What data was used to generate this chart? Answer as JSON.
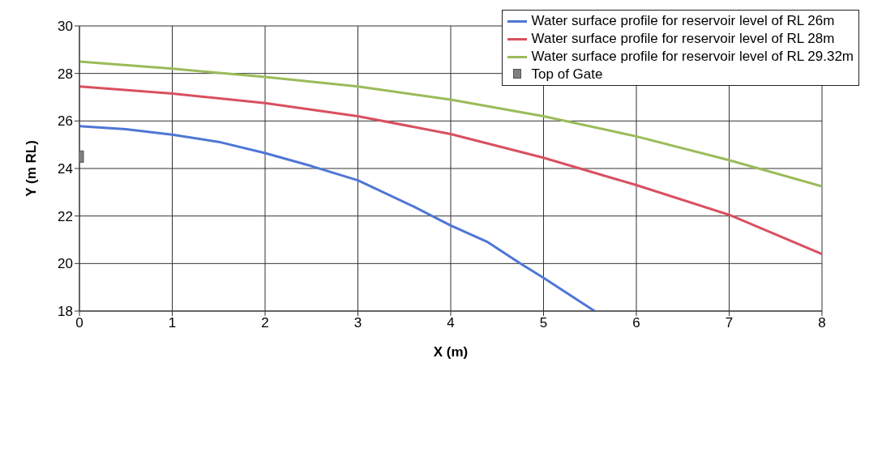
{
  "chart_data": {
    "type": "line",
    "xlabel": "X (m)",
    "ylabel": "Y (m RL)",
    "xlim": [
      0,
      8
    ],
    "xticks": [
      0,
      1,
      2,
      3,
      4,
      5,
      6,
      7,
      8
    ],
    "ylim": [
      18,
      30
    ],
    "yticks": [
      18,
      20,
      22,
      24,
      26,
      28,
      30
    ],
    "grid": true,
    "legend": "top right",
    "series": [
      {
        "name": "Water surface profile for reservoir level of RL 26m",
        "color": "#4f76d6",
        "x": [
          0,
          0.5,
          1,
          1.5,
          2,
          2.5,
          3,
          3.6,
          4,
          4.4,
          4.75,
          5,
          5.55
        ],
        "values": [
          25.78,
          25.65,
          25.42,
          25.12,
          24.65,
          24.1,
          23.5,
          22.4,
          21.6,
          20.9,
          20.0,
          19.4,
          18.0
        ]
      },
      {
        "name": "Water surface profile for reservoir level of RL 28m",
        "color": "#d9505f",
        "x": [
          0,
          1,
          2,
          3,
          4,
          5,
          6,
          7,
          8
        ],
        "values": [
          27.45,
          27.15,
          26.75,
          26.2,
          25.45,
          24.45,
          23.3,
          22.05,
          20.4
        ]
      },
      {
        "name": "Water surface profile for reservoir level of RL 29.32m",
        "color": "#9bbb59",
        "x": [
          0,
          1,
          2,
          3,
          4,
          5,
          6,
          7,
          8
        ],
        "values": [
          28.5,
          28.2,
          27.85,
          27.45,
          26.9,
          26.2,
          25.35,
          24.35,
          23.25
        ]
      },
      {
        "name": "Top of Gate",
        "type": "scatter",
        "marker": "square",
        "color": "#7f7f7f",
        "x": [
          0
        ],
        "values": [
          24.5
        ]
      }
    ]
  }
}
